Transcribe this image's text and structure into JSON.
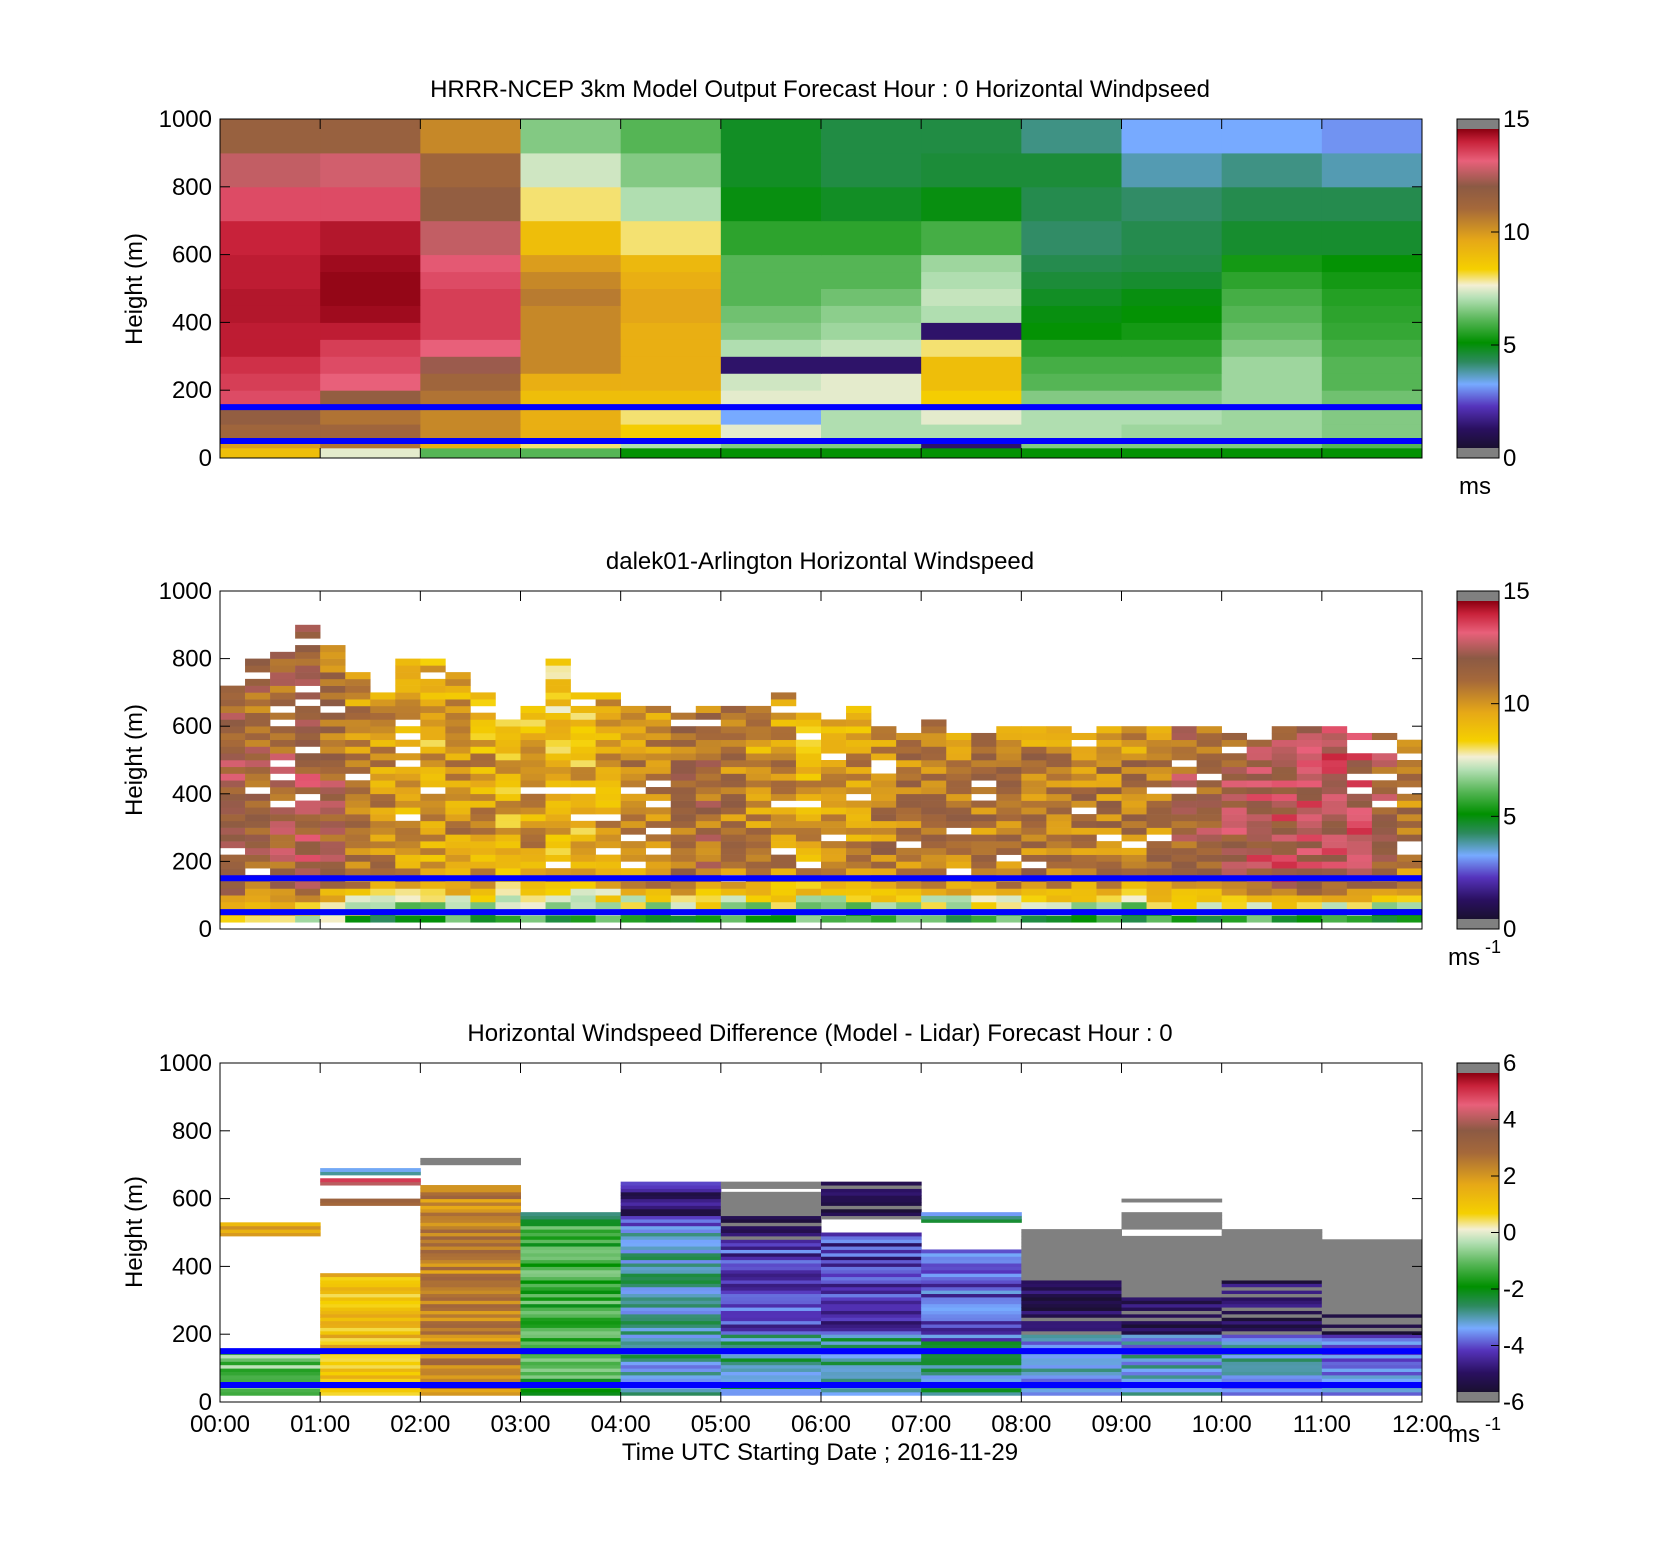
{
  "figure": {
    "xlabel": "Time UTC  Starting Date ; 2016-11-29",
    "x_ticks": [
      "00:00",
      "01:00",
      "02:00",
      "03:00",
      "04:00",
      "05:00",
      "06:00",
      "07:00",
      "08:00",
      "09:00",
      "10:00",
      "11:00",
      "12:00"
    ]
  },
  "colors": {
    "lidar_band_lines": "#0000ff",
    "missing": "#ffffff"
  },
  "chart_data": [
    {
      "type": "heatmap",
      "title": "HRRR-NCEP 3km Model Output   Forecast Hour : 0 Horizontal Windpseed",
      "ylabel": "Height (m)",
      "xlim": [
        "00:00",
        "12:00"
      ],
      "ylim": [
        0,
        1000
      ],
      "y_ticks": [
        0,
        200,
        400,
        600,
        800,
        1000
      ],
      "hlines_m": [
        50,
        150
      ],
      "colorbar": {
        "min": 0,
        "max": 15,
        "ticks": [
          0,
          5,
          10,
          15
        ],
        "unit": "ms",
        "unit_sup": ""
      },
      "columns_start": [
        "00:00",
        "01:00",
        "02:00",
        "03:00",
        "04:00",
        "05:00",
        "06:00",
        "07:00",
        "08:00",
        "09:00",
        "10:00",
        "11:00"
      ],
      "levels_m": [
        0,
        30,
        60,
        100,
        150,
        200,
        250,
        300,
        350,
        400,
        450,
        500,
        550,
        600,
        700,
        800,
        900,
        1000
      ],
      "values": [
        [
          9.0,
          7.5,
          6.0,
          6.0,
          5.0,
          5.0,
          5.0,
          5.0,
          5.0,
          5.0,
          5.0,
          5.0
        ],
        [
          10.0,
          11.0,
          9.5,
          8.0,
          7.0,
          6.5,
          6.5,
          1.0,
          6.5,
          6.5,
          6.5,
          6.0
        ],
        [
          11.5,
          11.5,
          10.5,
          9.5,
          8.5,
          7.5,
          7.0,
          7.0,
          7.0,
          6.8,
          6.8,
          6.5
        ],
        [
          12.0,
          11.0,
          10.5,
          9.5,
          8.0,
          3.0,
          7.0,
          7.5,
          7.0,
          7.0,
          6.8,
          6.5
        ],
        [
          13.8,
          12.0,
          11.0,
          9.0,
          9.0,
          7.5,
          7.5,
          8.5,
          6.5,
          6.5,
          6.8,
          6.3
        ],
        [
          14.0,
          13.5,
          11.5,
          9.5,
          9.5,
          7.3,
          7.5,
          9.0,
          6.0,
          6.0,
          6.8,
          6.0
        ],
        [
          14.2,
          13.8,
          12.5,
          10.5,
          9.5,
          1.0,
          1.0,
          9.0,
          5.8,
          5.8,
          6.8,
          6.0
        ],
        [
          14.5,
          14.0,
          13.5,
          10.5,
          9.5,
          7.0,
          7.2,
          8.0,
          5.5,
          5.5,
          6.5,
          5.8
        ],
        [
          14.5,
          14.5,
          14.0,
          10.5,
          9.5,
          6.5,
          6.8,
          1.0,
          5.0,
          5.2,
          6.2,
          5.6
        ],
        [
          14.6,
          14.8,
          14.0,
          10.5,
          9.8,
          6.3,
          6.6,
          7.0,
          4.8,
          5.0,
          6.0,
          5.5
        ],
        [
          14.6,
          14.9,
          14.0,
          10.8,
          9.8,
          6.0,
          6.3,
          7.2,
          4.6,
          4.8,
          5.8,
          5.4
        ],
        [
          14.5,
          14.9,
          13.8,
          10.5,
          9.5,
          6.0,
          6.0,
          7.0,
          4.4,
          4.5,
          5.5,
          5.2
        ],
        [
          14.5,
          14.8,
          13.6,
          10.0,
          9.2,
          6.0,
          6.0,
          6.8,
          4.2,
          4.3,
          5.2,
          5.0
        ],
        [
          14.4,
          14.6,
          13.0,
          9.0,
          8.0,
          5.5,
          5.5,
          5.8,
          4.0,
          4.2,
          4.5,
          4.5
        ],
        [
          13.8,
          13.8,
          12.0,
          8.0,
          7.0,
          4.8,
          4.6,
          4.8,
          4.2,
          4.0,
          4.2,
          4.2
        ],
        [
          13.0,
          13.2,
          11.5,
          7.3,
          6.5,
          4.6,
          4.3,
          4.4,
          4.4,
          3.5,
          3.8,
          3.5
        ],
        [
          11.8,
          11.8,
          10.5,
          6.5,
          6.0,
          4.6,
          4.3,
          4.3,
          3.8,
          3.0,
          3.0,
          2.8
        ]
      ]
    },
    {
      "type": "heatmap",
      "title": "dalek01-Arlington  Horizontal Windspeed",
      "ylabel": "Height (m)",
      "xlim": [
        "00:00",
        "12:00"
      ],
      "ylim": [
        0,
        1000
      ],
      "y_ticks": [
        0,
        200,
        400,
        600,
        800,
        1000
      ],
      "hlines_m": [
        50,
        150
      ],
      "colorbar": {
        "min": 0,
        "max": 15,
        "ticks": [
          0,
          5,
          10,
          15
        ],
        "unit": "ms",
        "unit_sup": "-1"
      },
      "profile_interval_min": 15,
      "level_spacing_m": 20,
      "top_of_data_m": [
        720,
        800,
        810,
        900,
        830,
        760,
        700,
        800,
        790,
        760,
        700,
        620,
        660,
        790,
        700,
        690,
        650,
        650,
        640,
        650,
        650,
        660,
        700,
        640,
        620,
        660,
        600,
        580,
        610,
        580,
        580,
        600,
        600,
        590,
        580,
        600,
        590,
        590,
        590,
        600,
        590,
        590,
        590,
        590,
        590,
        580,
        580,
        560
      ],
      "median_speed_ms": [
        12.5,
        12.0,
        12.0,
        12.5,
        12.0,
        11.0,
        10.5,
        10.0,
        10.0,
        10.5,
        10.0,
        9.5,
        10.0,
        9.5,
        9.5,
        10.0,
        10.5,
        11.0,
        11.5,
        11.5,
        11.0,
        10.5,
        10.5,
        10.0,
        10.0,
        10.5,
        11.0,
        11.0,
        11.0,
        11.0,
        11.0,
        11.0,
        11.0,
        11.0,
        11.0,
        11.0,
        11.0,
        11.0,
        12.0,
        12.0,
        12.5,
        13.0,
        13.0,
        13.5,
        13.5,
        13.0,
        12.0,
        11.0
      ],
      "near_surface_speed_ms": [
        9.0,
        9.0,
        8.5,
        8.0,
        7.0,
        6.0,
        5.0,
        5.0,
        5.5,
        5.5,
        5.5,
        6.0,
        6.0,
        5.0,
        6.0,
        6.0,
        6.0,
        5.5,
        5.5,
        6.0,
        6.0,
        5.0,
        5.5,
        5.5,
        5.5,
        5.0,
        5.5,
        5.5,
        5.5,
        5.0,
        5.5,
        5.5,
        5.5,
        5.5,
        5.5,
        5.5,
        5.0,
        5.5,
        5.5,
        5.5,
        5.5,
        5.5,
        5.5,
        5.5,
        5.5,
        5.5,
        5.0,
        5.0
      ]
    },
    {
      "type": "heatmap",
      "title": "Horizontal Windspeed Difference (Model - Lidar) Forecast Hour : 0",
      "ylabel": "Height (m)",
      "xlim": [
        "00:00",
        "12:00"
      ],
      "ylim": [
        0,
        1000
      ],
      "y_ticks": [
        0,
        200,
        400,
        600,
        800,
        1000
      ],
      "hlines_m": [
        50,
        150
      ],
      "colorbar": {
        "min": -6,
        "max": 6,
        "ticks": [
          -6,
          -4,
          -2,
          0,
          2,
          4,
          6
        ],
        "unit": "ms",
        "unit_sup": "-1"
      },
      "columns_start": [
        "00:00",
        "01:00",
        "02:00",
        "03:00",
        "04:00",
        "05:00",
        "06:00",
        "07:00",
        "08:00",
        "09:00",
        "10:00",
        "11:00"
      ],
      "blocks": [
        {
          "col": 0,
          "from_m": 20,
          "to_m": 150,
          "value": -1.0
        },
        {
          "col": 0,
          "from_m": 490,
          "to_m": 530,
          "value": 1.5
        },
        {
          "col": 1,
          "from_m": 20,
          "to_m": 380,
          "value": 1.2
        },
        {
          "col": 1,
          "from_m": 580,
          "to_m": 600,
          "value": 3.5
        },
        {
          "col": 1,
          "from_m": 640,
          "to_m": 660,
          "value": 5.0
        },
        {
          "col": 1,
          "from_m": 670,
          "to_m": 690,
          "value": -3.0
        },
        {
          "col": 2,
          "from_m": 20,
          "to_m": 640,
          "value": 2.5
        },
        {
          "col": 2,
          "from_m": 700,
          "to_m": 720,
          "value": 7.0
        },
        {
          "col": 3,
          "from_m": 20,
          "to_m": 520,
          "value": -1.5
        },
        {
          "col": 3,
          "from_m": 520,
          "to_m": 560,
          "value": -3.0
        },
        {
          "col": 4,
          "from_m": 20,
          "to_m": 500,
          "value": -3.2
        },
        {
          "col": 4,
          "from_m": 500,
          "to_m": 550,
          "value": -4.0
        },
        {
          "col": 4,
          "from_m": 550,
          "to_m": 650,
          "value": -5.0
        },
        {
          "col": 5,
          "from_m": 20,
          "to_m": 200,
          "value": -3.0
        },
        {
          "col": 5,
          "from_m": 200,
          "to_m": 480,
          "value": -4.5
        },
        {
          "col": 5,
          "from_m": 480,
          "to_m": 550,
          "value": -5.8
        },
        {
          "col": 5,
          "from_m": 550,
          "to_m": 620,
          "value": 7.0
        },
        {
          "col": 5,
          "from_m": 630,
          "to_m": 650,
          "value": 7.0
        },
        {
          "col": 6,
          "from_m": 20,
          "to_m": 200,
          "value": -3.0
        },
        {
          "col": 6,
          "from_m": 200,
          "to_m": 500,
          "value": -4.5
        },
        {
          "col": 6,
          "from_m": 540,
          "to_m": 650,
          "value": -5.9
        },
        {
          "col": 7,
          "from_m": 20,
          "to_m": 180,
          "value": -3.0
        },
        {
          "col": 7,
          "from_m": 180,
          "to_m": 450,
          "value": -4.2
        },
        {
          "col": 7,
          "from_m": 530,
          "to_m": 560,
          "value": -3.0
        },
        {
          "col": 8,
          "from_m": 20,
          "to_m": 200,
          "value": -3.5
        },
        {
          "col": 8,
          "from_m": 200,
          "to_m": 360,
          "value": -5.5
        },
        {
          "col": 8,
          "from_m": 360,
          "to_m": 510,
          "value": 7.0
        },
        {
          "col": 9,
          "from_m": 20,
          "to_m": 200,
          "value": -3.5
        },
        {
          "col": 9,
          "from_m": 200,
          "to_m": 310,
          "value": -5.5
        },
        {
          "col": 9,
          "from_m": 310,
          "to_m": 490,
          "value": 7.0
        },
        {
          "col": 9,
          "from_m": 510,
          "to_m": 560,
          "value": 7.0
        },
        {
          "col": 9,
          "from_m": 590,
          "to_m": 600,
          "value": 6.5
        },
        {
          "col": 10,
          "from_m": 20,
          "to_m": 200,
          "value": -3.5
        },
        {
          "col": 10,
          "from_m": 200,
          "to_m": 370,
          "value": -5.5
        },
        {
          "col": 10,
          "from_m": 370,
          "to_m": 510,
          "value": 7.0
        },
        {
          "col": 11,
          "from_m": 20,
          "to_m": 200,
          "value": -3.8
        },
        {
          "col": 11,
          "from_m": 200,
          "to_m": 260,
          "value": -5.8
        },
        {
          "col": 11,
          "from_m": 260,
          "to_m": 480,
          "value": 7.0
        }
      ]
    }
  ]
}
